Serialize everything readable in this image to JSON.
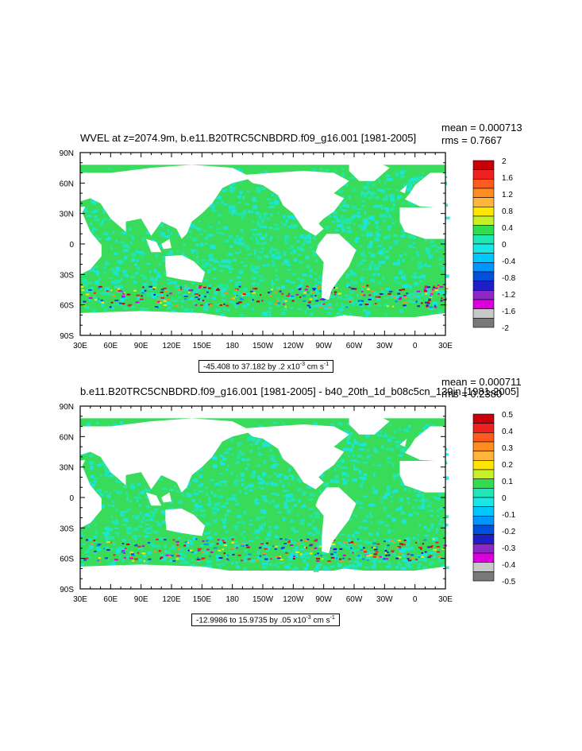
{
  "chart_data": [
    {
      "type": "heatmap",
      "title": "WVEL at z=2074.9m, b.e11.B20TRC5CNBDRD.f09_g16.001 [1981-2005]",
      "mean_label": "mean = 0.000713",
      "rms_label": "rms = 0.7667",
      "range_prefix": "-45.408 to 37.182 by .2 x10",
      "range_exp": "-3",
      "range_units": " cm s",
      "range_units_exp": "-1",
      "x_tick_labels": [
        "30E",
        "60E",
        "90E",
        "120E",
        "150E",
        "180",
        "150W",
        "120W",
        "90W",
        "60W",
        "30W",
        "0",
        "30E"
      ],
      "y_tick_labels": [
        "90N",
        "60N",
        "30N",
        "0",
        "30S",
        "60S",
        "90S"
      ],
      "colorbar_labels": [
        "2",
        "1.6",
        "1.2",
        "0.8",
        "0.4",
        "0",
        "-0.4",
        "-0.8",
        "-1.2",
        "-1.6",
        "-2"
      ],
      "colorbar_colors": [
        "#c8000a",
        "#ee2020",
        "#ff5a1e",
        "#ff8c1e",
        "#ffb43c",
        "#ffe600",
        "#c8f028",
        "#32dc50",
        "#1ee6b4",
        "#19e6e6",
        "#00c8ff",
        "#0096ff",
        "#0050dc",
        "#1e1ec8",
        "#8c28c8",
        "#dc00dc",
        "#c8c8c8",
        "#787878"
      ]
    },
    {
      "type": "heatmap",
      "title": "b.e11.B20TRC5CNBDRD.f09_g16.001 [1981-2005] - b40_20th_1d_b08c5cn_139jn [1981-2005]",
      "mean_label": "mean = 0.000711",
      "rms_label": "rms = 0.2380",
      "range_prefix": "-12.9986 to 15.9735 by .05 x10",
      "range_exp": "-3",
      "range_units": " cm s",
      "range_units_exp": "-1",
      "x_tick_labels": [
        "30E",
        "60E",
        "90E",
        "120E",
        "150E",
        "180",
        "150W",
        "120W",
        "90W",
        "60W",
        "30W",
        "0",
        "30E"
      ],
      "y_tick_labels": [
        "90N",
        "60N",
        "30N",
        "0",
        "30S",
        "60S",
        "90S"
      ],
      "colorbar_labels": [
        "0.5",
        "0.4",
        "0.3",
        "0.2",
        "0.1",
        "0",
        "-0.1",
        "-0.2",
        "-0.3",
        "-0.4",
        "-0.5"
      ],
      "colorbar_colors": [
        "#c8000a",
        "#ee2020",
        "#ff5a1e",
        "#ff8c1e",
        "#ffb43c",
        "#ffe600",
        "#c8f028",
        "#32dc50",
        "#1ee6b4",
        "#19e6e6",
        "#00c8ff",
        "#0096ff",
        "#0050dc",
        "#1e1ec8",
        "#8c28c8",
        "#dc00dc",
        "#c8c8c8",
        "#787878"
      ]
    }
  ]
}
